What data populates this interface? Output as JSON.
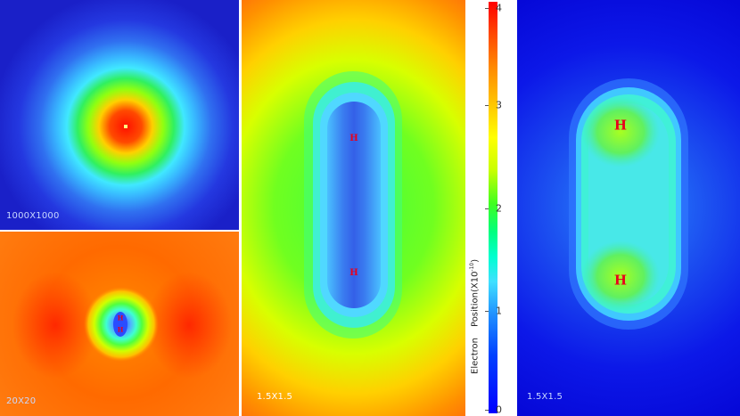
{
  "panels": {
    "p1": {
      "label": "1000X1000"
    },
    "p2": {
      "label": "20X20",
      "atom_symbol": "H"
    },
    "p3": {
      "label": "1.5X1.5",
      "atom_symbol": "H"
    },
    "p4": {
      "label": "1.5X1.5",
      "atom_symbol": "H"
    }
  },
  "colorbar": {
    "ticks": [
      "4",
      "3",
      "2",
      "1",
      "0"
    ],
    "label_primary": "Position(X10",
    "label_exp": "-10",
    "label_close": ")",
    "label_secondary": "Electron"
  },
  "colors": {
    "low": "#0000ff",
    "mid": "#40ff20",
    "high": "#ff0000",
    "atom": "#e8001c"
  }
}
